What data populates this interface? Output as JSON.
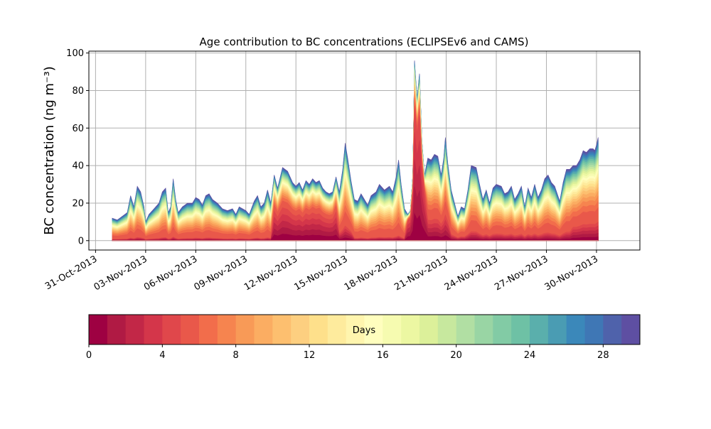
{
  "chart_data": {
    "type": "area",
    "subtype": "stacked-area by age bin",
    "title": "Age contribution to BC concentrations (ECLIPSEv6 and CAMS)",
    "ylabel": "BC concentration (ng m⁻³)",
    "xlabel": "",
    "ylim": [
      -5,
      101
    ],
    "xlim_days_since_31_Oct_2013": [
      -0.4,
      32.6
    ],
    "grid": true,
    "x_tick_labels": [
      "31-Oct-2013",
      "03-Nov-2013",
      "06-Nov-2013",
      "09-Nov-2013",
      "12-Nov-2013",
      "15-Nov-2013",
      "18-Nov-2013",
      "21-Nov-2013",
      "24-Nov-2013",
      "27-Nov-2013",
      "30-Nov-2013"
    ],
    "x_tick_days": [
      0,
      3,
      6,
      9,
      12,
      15,
      18,
      21,
      24,
      27,
      30
    ],
    "y_ticks": [
      0,
      20,
      40,
      60,
      80,
      100
    ],
    "series_description": "Total BC concentration (upper envelope) stacked from 30 one-day age bins; each time point gives [days since 31-Oct-2013, total ng m-3, fraction 0-5 days, fraction 5-10 days]",
    "total_series": [
      [
        1.0,
        12
      ],
      [
        1.3,
        11
      ],
      [
        1.6,
        13
      ],
      [
        1.9,
        15
      ],
      [
        2.1,
        24
      ],
      [
        2.3,
        18
      ],
      [
        2.5,
        29
      ],
      [
        2.7,
        26
      ],
      [
        2.9,
        18
      ],
      [
        3.0,
        10
      ],
      [
        3.2,
        14
      ],
      [
        3.5,
        17
      ],
      [
        3.8,
        20
      ],
      [
        4.0,
        26
      ],
      [
        4.2,
        28
      ],
      [
        4.35,
        15
      ],
      [
        4.5,
        18
      ],
      [
        4.65,
        33
      ],
      [
        4.8,
        22
      ],
      [
        4.95,
        15
      ],
      [
        5.2,
        18
      ],
      [
        5.5,
        20
      ],
      [
        5.8,
        20
      ],
      [
        6.0,
        23
      ],
      [
        6.2,
        22
      ],
      [
        6.4,
        19
      ],
      [
        6.6,
        24
      ],
      [
        6.8,
        25
      ],
      [
        7.0,
        22
      ],
      [
        7.3,
        20
      ],
      [
        7.6,
        17
      ],
      [
        7.9,
        16
      ],
      [
        8.2,
        17
      ],
      [
        8.4,
        14
      ],
      [
        8.6,
        18
      ],
      [
        8.8,
        17
      ],
      [
        9.0,
        16
      ],
      [
        9.2,
        14
      ],
      [
        9.5,
        21
      ],
      [
        9.7,
        24
      ],
      [
        9.9,
        18
      ],
      [
        10.1,
        20
      ],
      [
        10.3,
        27
      ],
      [
        10.5,
        20
      ],
      [
        10.7,
        35
      ],
      [
        10.9,
        28
      ],
      [
        11.2,
        39
      ],
      [
        11.5,
        37
      ],
      [
        11.8,
        31
      ],
      [
        12.0,
        29
      ],
      [
        12.2,
        31
      ],
      [
        12.4,
        27
      ],
      [
        12.6,
        32
      ],
      [
        12.8,
        30
      ],
      [
        13.0,
        33
      ],
      [
        13.2,
        31
      ],
      [
        13.4,
        32
      ],
      [
        13.6,
        28
      ],
      [
        13.8,
        26
      ],
      [
        14.0,
        25
      ],
      [
        14.2,
        26
      ],
      [
        14.4,
        34
      ],
      [
        14.6,
        26
      ],
      [
        14.8,
        38
      ],
      [
        14.95,
        52
      ],
      [
        15.1,
        44
      ],
      [
        15.3,
        32
      ],
      [
        15.5,
        22
      ],
      [
        15.7,
        21
      ],
      [
        15.9,
        25
      ],
      [
        16.1,
        22
      ],
      [
        16.3,
        19
      ],
      [
        16.5,
        24
      ],
      [
        16.8,
        26
      ],
      [
        17.0,
        30
      ],
      [
        17.3,
        27
      ],
      [
        17.6,
        29
      ],
      [
        17.8,
        26
      ],
      [
        18.0,
        34
      ],
      [
        18.15,
        43
      ],
      [
        18.3,
        30
      ],
      [
        18.5,
        17
      ],
      [
        18.7,
        14
      ],
      [
        18.85,
        16
      ],
      [
        19.0,
        35
      ],
      [
        19.1,
        96
      ],
      [
        19.25,
        76
      ],
      [
        19.4,
        89
      ],
      [
        19.55,
        53
      ],
      [
        19.7,
        35
      ],
      [
        19.9,
        44
      ],
      [
        20.1,
        43
      ],
      [
        20.3,
        46
      ],
      [
        20.5,
        45
      ],
      [
        20.7,
        35
      ],
      [
        20.85,
        44
      ],
      [
        20.95,
        55
      ],
      [
        21.1,
        41
      ],
      [
        21.3,
        27
      ],
      [
        21.5,
        20
      ],
      [
        21.7,
        13
      ],
      [
        21.9,
        18
      ],
      [
        22.1,
        17
      ],
      [
        22.3,
        27
      ],
      [
        22.5,
        40
      ],
      [
        22.8,
        39
      ],
      [
        23.0,
        30
      ],
      [
        23.2,
        22
      ],
      [
        23.4,
        27
      ],
      [
        23.6,
        20
      ],
      [
        23.8,
        28
      ],
      [
        24.0,
        30
      ],
      [
        24.3,
        29
      ],
      [
        24.5,
        25
      ],
      [
        24.7,
        26
      ],
      [
        24.9,
        29
      ],
      [
        25.1,
        22
      ],
      [
        25.3,
        25
      ],
      [
        25.5,
        29
      ],
      [
        25.7,
        18
      ],
      [
        25.9,
        28
      ],
      [
        26.1,
        23
      ],
      [
        26.3,
        30
      ],
      [
        26.5,
        23
      ],
      [
        26.7,
        27
      ],
      [
        26.9,
        33
      ],
      [
        27.1,
        35
      ],
      [
        27.3,
        31
      ],
      [
        27.5,
        29
      ],
      [
        27.8,
        21
      ],
      [
        28.0,
        31
      ],
      [
        28.2,
        38
      ],
      [
        28.4,
        38
      ],
      [
        28.6,
        40
      ],
      [
        28.8,
        40
      ],
      [
        29.0,
        43
      ],
      [
        29.2,
        48
      ],
      [
        29.4,
        47
      ],
      [
        29.6,
        49
      ],
      [
        29.8,
        49
      ],
      [
        29.9,
        48
      ],
      [
        30.0,
        51
      ],
      [
        30.1,
        55
      ]
    ],
    "colorbar": {
      "label": "Days",
      "range": [
        0,
        30
      ],
      "tick_values": [
        0,
        4,
        8,
        12,
        16,
        20,
        24,
        28
      ],
      "tick_labels": [
        "0",
        "4",
        "8",
        "12",
        "16",
        "20",
        "24",
        "28"
      ],
      "colormap": "Spectral",
      "colors": [
        "#9e0142",
        "#b01a44",
        "#c22747",
        "#d4364a",
        "#e0474b",
        "#e9584a",
        "#f26d4b",
        "#f6844f",
        "#f89a57",
        "#fbad62",
        "#fdbf6f",
        "#fdcf80",
        "#fee08b",
        "#feeb9d",
        "#fff5ae",
        "#fffebe",
        "#f6fbb0",
        "#ecf7a2",
        "#dcf09a",
        "#c7e89e",
        "#b1dfa3",
        "#99d5a4",
        "#82cba5",
        "#6ec1a5",
        "#5aafac",
        "#4a9cb3",
        "#3b88ba",
        "#3f77b5",
        "#4f62ab",
        "#5e4fa2"
      ]
    }
  }
}
